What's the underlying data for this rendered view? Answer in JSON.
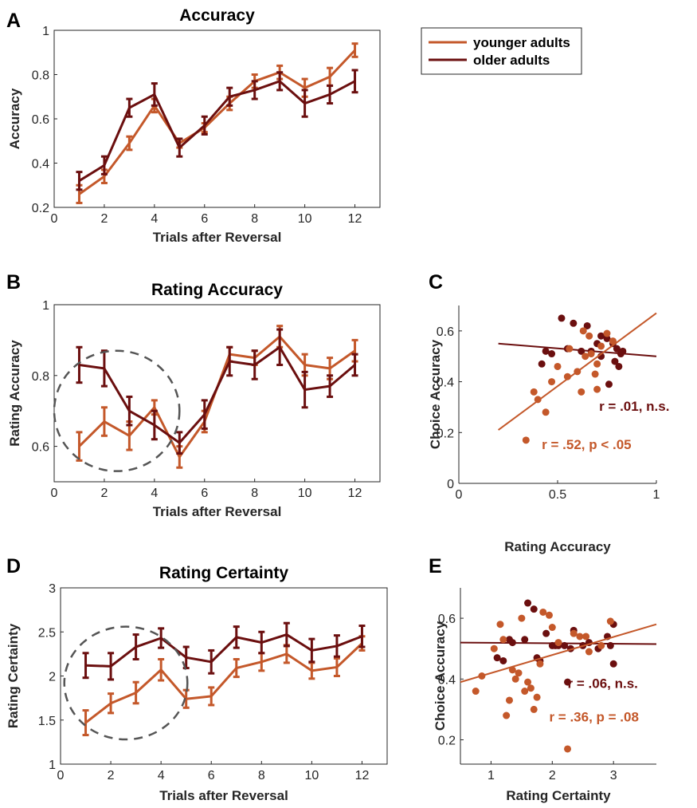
{
  "colors": {
    "younger": "#c4582a",
    "older": "#6b0f0f",
    "circle": "#555555"
  },
  "legend": {
    "younger": "younger adults",
    "older": "older adults"
  },
  "chart_data": [
    {
      "id": "A",
      "type": "line",
      "letter": "A",
      "title": "Accuracy",
      "xlabel": "Trials after Reversal",
      "ylabel": "Accuracy",
      "xlim": [
        0,
        13
      ],
      "ylim": [
        0.2,
        1
      ],
      "xticks": [
        0,
        2,
        4,
        6,
        8,
        10,
        12
      ],
      "xticklabels": [
        "0",
        "2",
        "4",
        "6",
        "8",
        "10",
        "12"
      ],
      "yticks": [
        0.2,
        0.4,
        0.6,
        0.8,
        1
      ],
      "yticklabels": [
        "0.2",
        "0.4",
        "0.6",
        "0.8",
        "1"
      ],
      "x": [
        1,
        2,
        3,
        4,
        5,
        6,
        7,
        8,
        9,
        10,
        11,
        12
      ],
      "series": [
        {
          "name": "younger adults",
          "key": "younger",
          "values": [
            0.26,
            0.34,
            0.49,
            0.66,
            0.49,
            0.56,
            0.67,
            0.77,
            0.81,
            0.74,
            0.79,
            0.91
          ],
          "err": [
            0.04,
            0.03,
            0.03,
            0.03,
            0.02,
            0.02,
            0.03,
            0.03,
            0.03,
            0.04,
            0.04,
            0.03
          ]
        },
        {
          "name": "older adults",
          "key": "older",
          "values": [
            0.32,
            0.39,
            0.65,
            0.71,
            0.47,
            0.57,
            0.7,
            0.73,
            0.77,
            0.67,
            0.71,
            0.77
          ],
          "err": [
            0.04,
            0.04,
            0.04,
            0.05,
            0.04,
            0.04,
            0.04,
            0.04,
            0.04,
            0.06,
            0.04,
            0.05
          ]
        }
      ]
    },
    {
      "id": "B",
      "type": "line",
      "letter": "B",
      "title": "Rating Accuracy",
      "xlabel": "Trials after Reversal",
      "ylabel": "Rating Accuracy",
      "xlim": [
        0,
        13
      ],
      "ylim": [
        0.5,
        1
      ],
      "xticks": [
        0,
        2,
        4,
        6,
        8,
        10,
        12
      ],
      "xticklabels": [
        "0",
        "2",
        "4",
        "6",
        "8",
        "10",
        "12"
      ],
      "yticks": [
        0.6,
        0.8,
        1
      ],
      "yticklabels": [
        "0.6",
        "0.8",
        "1"
      ],
      "x": [
        1,
        2,
        3,
        4,
        5,
        6,
        7,
        8,
        9,
        10,
        11,
        12
      ],
      "series": [
        {
          "name": "younger adults",
          "key": "younger",
          "values": [
            0.6,
            0.67,
            0.63,
            0.71,
            0.57,
            0.67,
            0.86,
            0.85,
            0.91,
            0.83,
            0.82,
            0.87
          ],
          "err": [
            0.04,
            0.04,
            0.04,
            0.02,
            0.03,
            0.03,
            0.02,
            0.02,
            0.03,
            0.03,
            0.03,
            0.03
          ]
        },
        {
          "name": "older adults",
          "key": "older",
          "values": [
            0.83,
            0.82,
            0.7,
            0.66,
            0.61,
            0.69,
            0.84,
            0.83,
            0.88,
            0.76,
            0.77,
            0.83
          ],
          "err": [
            0.05,
            0.05,
            0.04,
            0.04,
            0.03,
            0.04,
            0.04,
            0.04,
            0.05,
            0.05,
            0.03,
            0.03
          ]
        }
      ],
      "circle": {
        "cx": 2.5,
        "cy": 0.7,
        "rx": 2.5,
        "ry": 0.17
      }
    },
    {
      "id": "C",
      "type": "scatter",
      "letter": "C",
      "xlabel": "Rating Accuracy",
      "ylabel": "Choice Accuracy",
      "xlim": [
        0,
        1
      ],
      "ylim": [
        0,
        0.7
      ],
      "xticks": [
        0,
        0.5,
        1
      ],
      "xticklabels": [
        "0",
        "0.5",
        "1"
      ],
      "yticks": [
        0,
        0.2,
        0.4,
        0.6
      ],
      "yticklabels": [
        "0",
        "0.2",
        "0.4",
        "0.6"
      ],
      "series": [
        {
          "key": "older",
          "points": [
            [
              0.52,
              0.65
            ],
            [
              0.44,
              0.52
            ],
            [
              0.47,
              0.51
            ],
            [
              0.42,
              0.47
            ],
            [
              0.55,
              0.53
            ],
            [
              0.58,
              0.63
            ],
            [
              0.65,
              0.62
            ],
            [
              0.62,
              0.52
            ],
            [
              0.7,
              0.55
            ],
            [
              0.72,
              0.58
            ],
            [
              0.75,
              0.57
            ],
            [
              0.78,
              0.55
            ],
            [
              0.8,
              0.53
            ],
            [
              0.82,
              0.51
            ],
            [
              0.79,
              0.48
            ],
            [
              0.81,
              0.46
            ],
            [
              0.72,
              0.5
            ],
            [
              0.76,
              0.39
            ],
            [
              0.67,
              0.52
            ],
            [
              0.83,
              0.52
            ]
          ],
          "fit": [
            [
              0.2,
              0.55
            ],
            [
              1.0,
              0.5
            ]
          ]
        },
        {
          "key": "younger",
          "points": [
            [
              0.34,
              0.17
            ],
            [
              0.38,
              0.36
            ],
            [
              0.4,
              0.33
            ],
            [
              0.44,
              0.28
            ],
            [
              0.47,
              0.4
            ],
            [
              0.5,
              0.46
            ],
            [
              0.55,
              0.42
            ],
            [
              0.56,
              0.53
            ],
            [
              0.6,
              0.44
            ],
            [
              0.62,
              0.36
            ],
            [
              0.63,
              0.6
            ],
            [
              0.66,
              0.58
            ],
            [
              0.67,
              0.51
            ],
            [
              0.69,
              0.43
            ],
            [
              0.7,
              0.47
            ],
            [
              0.7,
              0.37
            ],
            [
              0.72,
              0.54
            ],
            [
              0.75,
              0.59
            ],
            [
              0.78,
              0.56
            ],
            [
              0.64,
              0.5
            ]
          ],
          "fit": [
            [
              0.2,
              0.21
            ],
            [
              1.0,
              0.67
            ]
          ]
        }
      ],
      "annotations": [
        {
          "text": "r = .01, n.s.",
          "key": "older",
          "x": 0.71,
          "y": 0.285
        },
        {
          "text": "r = .52, p < .05",
          "key": "younger",
          "x": 0.42,
          "y": 0.135
        }
      ]
    },
    {
      "id": "D",
      "type": "line",
      "letter": "D",
      "title": "Rating Certainty",
      "xlabel": "Trials after Reversal",
      "ylabel": "Rating Certainty",
      "xlim": [
        0,
        13
      ],
      "ylim": [
        1,
        3
      ],
      "xticks": [
        0,
        2,
        4,
        6,
        8,
        10,
        12
      ],
      "xticklabels": [
        "0",
        "2",
        "4",
        "6",
        "8",
        "10",
        "12"
      ],
      "yticks": [
        1,
        1.5,
        2,
        2.5,
        3
      ],
      "yticklabels": [
        "1",
        "1.5",
        "2",
        "2.5",
        "3"
      ],
      "x": [
        1,
        2,
        3,
        4,
        5,
        6,
        7,
        8,
        9,
        10,
        11,
        12
      ],
      "series": [
        {
          "name": "younger adults",
          "key": "younger",
          "values": [
            1.47,
            1.69,
            1.81,
            2.07,
            1.74,
            1.77,
            2.09,
            2.16,
            2.25,
            2.06,
            2.1,
            2.37
          ],
          "err": [
            0.14,
            0.11,
            0.12,
            0.12,
            0.1,
            0.1,
            0.1,
            0.1,
            0.1,
            0.09,
            0.1,
            0.08
          ]
        },
        {
          "name": "older adults",
          "key": "older",
          "values": [
            2.12,
            2.11,
            2.33,
            2.43,
            2.21,
            2.16,
            2.44,
            2.38,
            2.47,
            2.29,
            2.34,
            2.45
          ],
          "err": [
            0.14,
            0.15,
            0.14,
            0.11,
            0.12,
            0.13,
            0.12,
            0.12,
            0.13,
            0.13,
            0.12,
            0.12
          ]
        }
      ],
      "circle": {
        "cx": 2.6,
        "cy": 1.92,
        "rx": 2.45,
        "ry": 0.64
      }
    },
    {
      "id": "E",
      "type": "scatter",
      "letter": "E",
      "xlabel": "Rating Certainty",
      "ylabel": "Choice Accuracy",
      "xlim": [
        0.5,
        3.7
      ],
      "ylim": [
        0.12,
        0.7
      ],
      "xticks": [
        1,
        2,
        3
      ],
      "xticklabels": [
        "1",
        "2",
        "3"
      ],
      "yticks": [
        0.2,
        0.4,
        0.6
      ],
      "yticklabels": [
        "0.2",
        "0.4",
        "0.6"
      ],
      "series": [
        {
          "key": "older",
          "points": [
            [
              1.1,
              0.47
            ],
            [
              1.2,
              0.46
            ],
            [
              1.3,
              0.53
            ],
            [
              1.35,
              0.52
            ],
            [
              1.6,
              0.65
            ],
            [
              1.7,
              0.63
            ],
            [
              1.75,
              0.47
            ],
            [
              1.8,
              0.46
            ],
            [
              1.9,
              0.55
            ],
            [
              2.0,
              0.51
            ],
            [
              2.05,
              0.51
            ],
            [
              2.1,
              0.51
            ],
            [
              2.2,
              0.51
            ],
            [
              2.25,
              0.39
            ],
            [
              2.3,
              0.5
            ],
            [
              2.35,
              0.56
            ],
            [
              2.5,
              0.51
            ],
            [
              2.6,
              0.52
            ],
            [
              2.75,
              0.5
            ],
            [
              2.9,
              0.54
            ],
            [
              3.0,
              0.45
            ],
            [
              3.0,
              0.58
            ],
            [
              1.55,
              0.53
            ],
            [
              2.95,
              0.51
            ]
          ],
          "fit": [
            [
              0.5,
              0.52
            ],
            [
              3.7,
              0.515
            ]
          ]
        },
        {
          "key": "younger",
          "points": [
            [
              0.75,
              0.36
            ],
            [
              0.85,
              0.41
            ],
            [
              1.05,
              0.5
            ],
            [
              1.15,
              0.58
            ],
            [
              1.2,
              0.53
            ],
            [
              1.25,
              0.28
            ],
            [
              1.3,
              0.33
            ],
            [
              1.35,
              0.43
            ],
            [
              1.4,
              0.4
            ],
            [
              1.45,
              0.42
            ],
            [
              1.5,
              0.6
            ],
            [
              1.55,
              0.36
            ],
            [
              1.6,
              0.39
            ],
            [
              1.65,
              0.37
            ],
            [
              1.7,
              0.3
            ],
            [
              1.75,
              0.34
            ],
            [
              1.8,
              0.45
            ],
            [
              1.85,
              0.62
            ],
            [
              1.95,
              0.61
            ],
            [
              2.0,
              0.57
            ],
            [
              2.1,
              0.52
            ],
            [
              2.25,
              0.17
            ],
            [
              2.35,
              0.55
            ],
            [
              2.45,
              0.54
            ],
            [
              2.55,
              0.54
            ],
            [
              2.6,
              0.49
            ],
            [
              2.8,
              0.51
            ],
            [
              2.95,
              0.59
            ]
          ],
          "fit": [
            [
              0.5,
              0.39
            ],
            [
              3.7,
              0.58
            ]
          ]
        }
      ],
      "annotations": [
        {
          "text": "r = .06, n.s.",
          "key": "older",
          "x": 2.25,
          "y": 0.37
        },
        {
          "text": "r = .36, p = .08",
          "key": "younger",
          "x": 1.95,
          "y": 0.26
        }
      ]
    }
  ]
}
